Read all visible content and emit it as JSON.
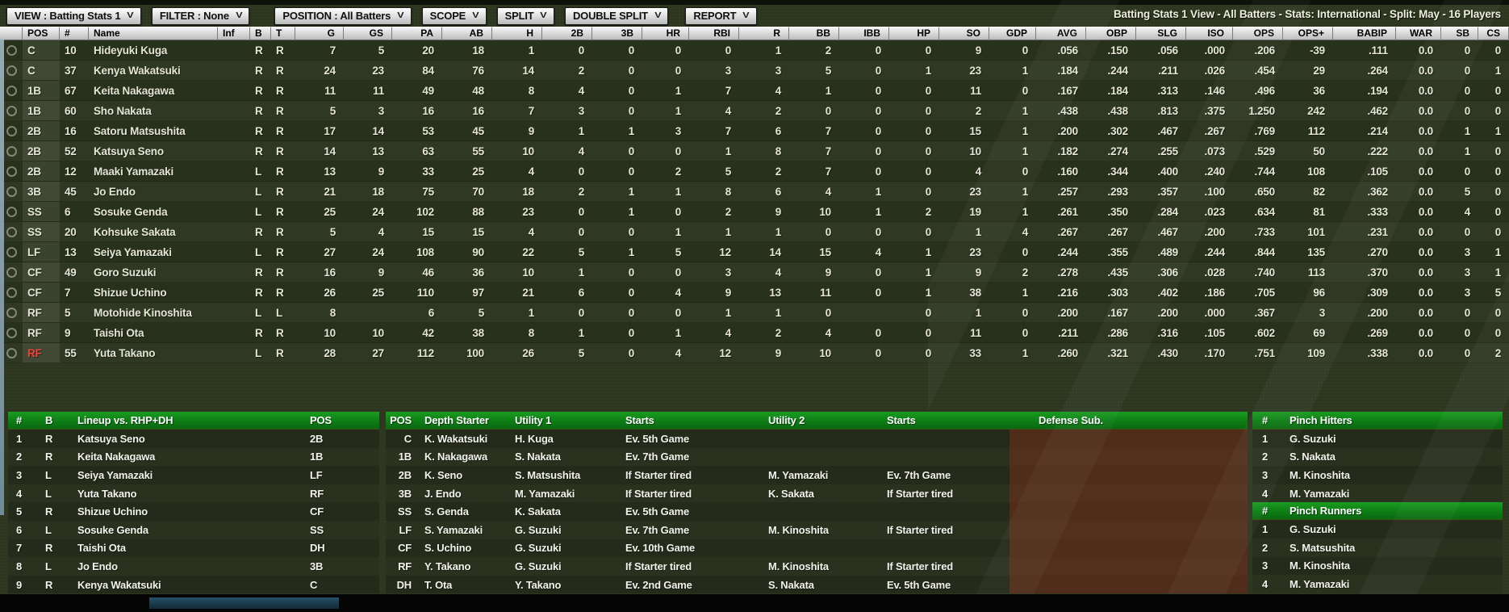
{
  "header": {
    "summary": "Batting Stats 1 View - All Batters - Stats: International - Split: May - 16 Players"
  },
  "icons": {
    "chevron_down": "V"
  },
  "colors": {
    "page_bg": "#2d361f",
    "panel_header_green": "#0e7d15",
    "row_odd": "#28311b",
    "row_even": "#2f3822",
    "header_gray": "#d8d8d8",
    "red_pos": "#ef4136",
    "text": "#e4e4d6"
  },
  "toolbar": {
    "buttons": [
      {
        "name": "view",
        "label": "VIEW : Batting Stats 1"
      },
      {
        "name": "filter",
        "label": "FILTER : None"
      },
      {
        "name": "position",
        "label": "POSITION : All Batters"
      },
      {
        "name": "scope",
        "label": "SCOPE"
      },
      {
        "name": "split",
        "label": "SPLIT"
      },
      {
        "name": "double-split",
        "label": "DOUBLE SPLIT"
      },
      {
        "name": "report",
        "label": "REPORT"
      }
    ]
  },
  "stats_table": {
    "columns": [
      {
        "key": "pos",
        "label": "POS",
        "align": "left"
      },
      {
        "key": "num",
        "label": "#",
        "align": "left"
      },
      {
        "key": "name",
        "label": "Name",
        "align": "left"
      },
      {
        "key": "inf",
        "label": "Inf",
        "align": "left"
      },
      {
        "key": "b",
        "label": "B",
        "align": "left"
      },
      {
        "key": "t",
        "label": "T",
        "align": "left"
      },
      {
        "key": "g",
        "label": "G",
        "align": "right"
      },
      {
        "key": "gs",
        "label": "GS",
        "align": "right"
      },
      {
        "key": "pa",
        "label": "PA",
        "align": "right"
      },
      {
        "key": "ab",
        "label": "AB",
        "align": "right"
      },
      {
        "key": "h",
        "label": "H",
        "align": "right"
      },
      {
        "key": "2b",
        "label": "2B",
        "align": "right"
      },
      {
        "key": "3b",
        "label": "3B",
        "align": "right"
      },
      {
        "key": "hr",
        "label": "HR",
        "align": "right"
      },
      {
        "key": "rbi",
        "label": "RBI",
        "align": "right"
      },
      {
        "key": "r",
        "label": "R",
        "align": "right"
      },
      {
        "key": "bb",
        "label": "BB",
        "align": "right"
      },
      {
        "key": "ibb",
        "label": "IBB",
        "align": "right"
      },
      {
        "key": "hp",
        "label": "HP",
        "align": "right"
      },
      {
        "key": "so",
        "label": "SO",
        "align": "right"
      },
      {
        "key": "gdp",
        "label": "GDP",
        "align": "right"
      },
      {
        "key": "avg",
        "label": "AVG",
        "align": "right"
      },
      {
        "key": "obp",
        "label": "OBP",
        "align": "right"
      },
      {
        "key": "slg",
        "label": "SLG",
        "align": "right"
      },
      {
        "key": "iso",
        "label": "ISO",
        "align": "right"
      },
      {
        "key": "ops",
        "label": "OPS",
        "align": "right"
      },
      {
        "key": "ops-plus",
        "label": "OPS+",
        "align": "right"
      },
      {
        "key": "babip",
        "label": "BABIP",
        "align": "right"
      },
      {
        "key": "war",
        "label": "WAR",
        "align": "right"
      },
      {
        "key": "sb",
        "label": "SB",
        "align": "right"
      },
      {
        "key": "cs",
        "label": "CS",
        "align": "right"
      }
    ],
    "rows": [
      {
        "cells": [
          "C",
          "10",
          "Hideyuki Kuga",
          "",
          "R",
          "R",
          "7",
          "5",
          "20",
          "18",
          "1",
          "0",
          "0",
          "0",
          "0",
          "1",
          "2",
          "0",
          "0",
          "9",
          "0",
          ".056",
          ".150",
          ".056",
          ".000",
          ".206",
          "-39",
          ".111",
          "0.0",
          "0",
          "0"
        ]
      },
      {
        "cells": [
          "C",
          "37",
          "Kenya Wakatsuki",
          "",
          "R",
          "R",
          "24",
          "23",
          "84",
          "76",
          "14",
          "2",
          "0",
          "0",
          "3",
          "3",
          "5",
          "0",
          "1",
          "23",
          "1",
          ".184",
          ".244",
          ".211",
          ".026",
          ".454",
          "29",
          ".264",
          "0.0",
          "0",
          "1"
        ]
      },
      {
        "cells": [
          "1B",
          "67",
          "Keita Nakagawa",
          "",
          "R",
          "R",
          "11",
          "11",
          "49",
          "48",
          "8",
          "4",
          "0",
          "1",
          "7",
          "4",
          "1",
          "0",
          "0",
          "11",
          "0",
          ".167",
          ".184",
          ".313",
          ".146",
          ".496",
          "36",
          ".194",
          "0.0",
          "0",
          "0"
        ]
      },
      {
        "cells": [
          "1B",
          "60",
          "Sho Nakata",
          "",
          "R",
          "R",
          "5",
          "3",
          "16",
          "16",
          "7",
          "3",
          "0",
          "1",
          "4",
          "2",
          "0",
          "0",
          "0",
          "2",
          "1",
          ".438",
          ".438",
          ".813",
          ".375",
          "1.250",
          "242",
          ".462",
          "0.0",
          "0",
          "0"
        ]
      },
      {
        "cells": [
          "2B",
          "16",
          "Satoru Matsushita",
          "",
          "R",
          "R",
          "17",
          "14",
          "53",
          "45",
          "9",
          "1",
          "1",
          "3",
          "7",
          "6",
          "7",
          "0",
          "0",
          "15",
          "1",
          ".200",
          ".302",
          ".467",
          ".267",
          ".769",
          "112",
          ".214",
          "0.0",
          "1",
          "1"
        ]
      },
      {
        "cells": [
          "2B",
          "52",
          "Katsuya Seno",
          "",
          "R",
          "R",
          "14",
          "13",
          "63",
          "55",
          "10",
          "4",
          "0",
          "0",
          "1",
          "8",
          "7",
          "0",
          "0",
          "10",
          "1",
          ".182",
          ".274",
          ".255",
          ".073",
          ".529",
          "50",
          ".222",
          "0.0",
          "1",
          "0"
        ]
      },
      {
        "cells": [
          "2B",
          "12",
          "Maaki Yamazaki",
          "",
          "L",
          "R",
          "13",
          "9",
          "33",
          "25",
          "4",
          "0",
          "0",
          "2",
          "5",
          "2",
          "7",
          "0",
          "0",
          "4",
          "0",
          ".160",
          ".344",
          ".400",
          ".240",
          ".744",
          "108",
          ".105",
          "0.0",
          "0",
          "0"
        ]
      },
      {
        "cells": [
          "3B",
          "45",
          "Jo Endo",
          "",
          "L",
          "R",
          "21",
          "18",
          "75",
          "70",
          "18",
          "2",
          "1",
          "1",
          "8",
          "6",
          "4",
          "1",
          "0",
          "23",
          "1",
          ".257",
          ".293",
          ".357",
          ".100",
          ".650",
          "82",
          ".362",
          "0.0",
          "5",
          "0"
        ]
      },
      {
        "cells": [
          "SS",
          "6",
          "Sosuke Genda",
          "",
          "L",
          "R",
          "25",
          "24",
          "102",
          "88",
          "23",
          "0",
          "1",
          "0",
          "2",
          "9",
          "10",
          "1",
          "2",
          "19",
          "1",
          ".261",
          ".350",
          ".284",
          ".023",
          ".634",
          "81",
          ".333",
          "0.0",
          "4",
          "0"
        ]
      },
      {
        "cells": [
          "SS",
          "20",
          "Kohsuke Sakata",
          "",
          "R",
          "R",
          "5",
          "4",
          "15",
          "15",
          "4",
          "0",
          "0",
          "1",
          "1",
          "1",
          "0",
          "0",
          "0",
          "1",
          "4",
          ".267",
          ".267",
          ".467",
          ".200",
          ".733",
          "101",
          ".231",
          "0.0",
          "0",
          "0"
        ]
      },
      {
        "cells": [
          "LF",
          "13",
          "Seiya Yamazaki",
          "",
          "L",
          "R",
          "27",
          "24",
          "108",
          "90",
          "22",
          "5",
          "1",
          "5",
          "12",
          "14",
          "15",
          "4",
          "1",
          "23",
          "0",
          ".244",
          ".355",
          ".489",
          ".244",
          ".844",
          "135",
          ".270",
          "0.0",
          "3",
          "1"
        ]
      },
      {
        "cells": [
          "CF",
          "49",
          "Goro Suzuki",
          "",
          "R",
          "R",
          "16",
          "9",
          "46",
          "36",
          "10",
          "1",
          "0",
          "0",
          "3",
          "4",
          "9",
          "0",
          "1",
          "9",
          "2",
          ".278",
          ".435",
          ".306",
          ".028",
          ".740",
          "113",
          ".370",
          "0.0",
          "3",
          "1"
        ]
      },
      {
        "cells": [
          "CF",
          "7",
          "Shizue Uchino",
          "",
          "R",
          "R",
          "26",
          "25",
          "110",
          "97",
          "21",
          "6",
          "0",
          "4",
          "9",
          "13",
          "11",
          "0",
          "1",
          "38",
          "1",
          ".216",
          ".303",
          ".402",
          ".186",
          ".705",
          "96",
          ".309",
          "0.0",
          "3",
          "5"
        ]
      },
      {
        "cells": [
          "RF",
          "5",
          "Motohide Kinoshita",
          "",
          "L",
          "L",
          "8",
          "",
          "6",
          "5",
          "1",
          "0",
          "0",
          "0",
          "1",
          "1",
          "0",
          "",
          "0",
          "1",
          "0",
          ".200",
          ".167",
          ".200",
          ".000",
          ".367",
          "3",
          ".200",
          "0.0",
          "0",
          "0"
        ]
      },
      {
        "cells": [
          "RF",
          "9",
          "Taishi Ota",
          "",
          "R",
          "R",
          "10",
          "10",
          "42",
          "38",
          "8",
          "1",
          "0",
          "1",
          "4",
          "2",
          "4",
          "0",
          "0",
          "11",
          "0",
          ".211",
          ".286",
          ".316",
          ".105",
          ".602",
          "69",
          ".269",
          "0.0",
          "0",
          "0"
        ]
      },
      {
        "cells": [
          "RF",
          "55",
          "Yuta Takano",
          "",
          "L",
          "R",
          "28",
          "27",
          "112",
          "100",
          "26",
          "5",
          "0",
          "4",
          "12",
          "9",
          "10",
          "0",
          "0",
          "33",
          "1",
          ".260",
          ".321",
          ".430",
          ".170",
          ".751",
          "109",
          ".338",
          "0.0",
          "0",
          "2"
        ],
        "pos_red": true
      }
    ]
  },
  "lineup_panel": {
    "headers": [
      "#",
      "B",
      "Lineup vs. RHP+DH",
      "POS"
    ],
    "rows": [
      [
        "1",
        "R",
        "Katsuya Seno",
        "2B"
      ],
      [
        "2",
        "R",
        "Keita Nakagawa",
        "1B"
      ],
      [
        "3",
        "L",
        "Seiya Yamazaki",
        "LF"
      ],
      [
        "4",
        "L",
        "Yuta Takano",
        "RF"
      ],
      [
        "5",
        "R",
        "Shizue Uchino",
        "CF"
      ],
      [
        "6",
        "L",
        "Sosuke Genda",
        "SS"
      ],
      [
        "7",
        "R",
        "Taishi Ota",
        "DH"
      ],
      [
        "8",
        "L",
        "Jo Endo",
        "3B"
      ],
      [
        "9",
        "R",
        "Kenya Wakatsuki",
        "C"
      ]
    ]
  },
  "depth_panel": {
    "headers": [
      "POS",
      "Depth Starter",
      "Utility 1",
      "Starts",
      "Utility 2",
      "Starts",
      "Defense Sub."
    ],
    "rows": [
      [
        "C",
        "K. Wakatsuki",
        "H. Kuga",
        "Ev. 5th Game",
        "",
        "",
        ""
      ],
      [
        "1B",
        "K. Nakagawa",
        "S. Nakata",
        "Ev. 7th Game",
        "",
        "",
        ""
      ],
      [
        "2B",
        "K. Seno",
        "S. Matsushita",
        "If Starter tired",
        "M. Yamazaki",
        "Ev. 7th Game",
        ""
      ],
      [
        "3B",
        "J. Endo",
        "M. Yamazaki",
        "If Starter tired",
        "K. Sakata",
        "If Starter tired",
        ""
      ],
      [
        "SS",
        "S. Genda",
        "K. Sakata",
        "Ev. 5th Game",
        "",
        "",
        ""
      ],
      [
        "LF",
        "S. Yamazaki",
        "G. Suzuki",
        "Ev. 7th Game",
        "M. Kinoshita",
        "If Starter tired",
        ""
      ],
      [
        "CF",
        "S. Uchino",
        "G. Suzuki",
        "Ev. 10th Game",
        "",
        "",
        ""
      ],
      [
        "RF",
        "Y. Takano",
        "G. Suzuki",
        "If Starter tired",
        "M. Kinoshita",
        "If Starter tired",
        ""
      ],
      [
        "DH",
        "T. Ota",
        "Y. Takano",
        "Ev. 2nd Game",
        "S. Nakata",
        "Ev. 5th Game",
        ""
      ]
    ]
  },
  "pinch_hitters_panel": {
    "headers": [
      "#",
      "Pinch Hitters"
    ],
    "rows": [
      [
        "1",
        "G. Suzuki"
      ],
      [
        "2",
        "S. Nakata"
      ],
      [
        "3",
        "M. Kinoshita"
      ],
      [
        "4",
        "M. Yamazaki"
      ]
    ]
  },
  "pinch_runners_panel": {
    "headers": [
      "#",
      "Pinch Runners"
    ],
    "rows": [
      [
        "1",
        "G. Suzuki"
      ],
      [
        "2",
        "S. Matsushita"
      ],
      [
        "3",
        "M. Kinoshita"
      ],
      [
        "4",
        "M. Yamazaki"
      ]
    ]
  }
}
